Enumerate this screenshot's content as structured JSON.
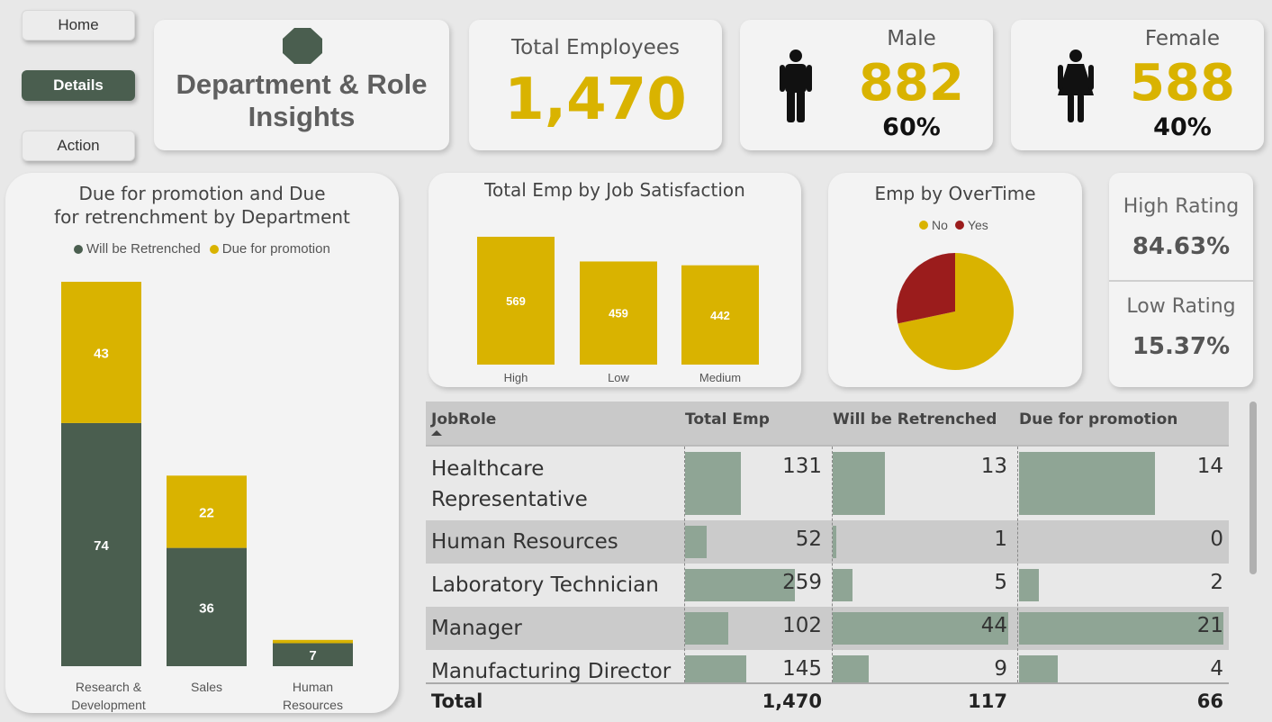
{
  "nav": {
    "home": "Home",
    "details": "Details",
    "action": "Action"
  },
  "header": {
    "title_line1": "Department & Role",
    "title_line2": "Insights",
    "logo_icon": "octagon-icon"
  },
  "kpis": {
    "total_label": "Total Employees",
    "total_value": "1,470",
    "male_label": "Male",
    "male_value": "882",
    "male_pct": "60%",
    "female_label": "Female",
    "female_value": "588",
    "female_pct": "40%"
  },
  "ratings": {
    "high_label": "High Rating",
    "high_value": "84.63%",
    "low_label": "Low Rating",
    "low_value": "15.37%"
  },
  "colors": {
    "gold": "#d9b300",
    "green": "#4a5e4f",
    "red": "#9b1c1c",
    "bar_green": "#8fa595"
  },
  "chart_data": [
    {
      "type": "bar",
      "stacked": true,
      "title": "Due for promotion and Due for retrenchment by Department",
      "legend_position": "top",
      "categories": [
        "Research & Development",
        "Sales",
        "Human Resources"
      ],
      "series": [
        {
          "name": "Will be Retrenched",
          "values": [
            74,
            36,
            7
          ]
        },
        {
          "name": "Due for promotion",
          "values": [
            43,
            22,
            1
          ]
        }
      ]
    },
    {
      "type": "bar",
      "title": "Total Emp by Job Satisfaction",
      "categories": [
        "High",
        "Low",
        "Medium"
      ],
      "values": [
        569,
        459,
        442
      ]
    },
    {
      "type": "pie",
      "title": "Emp by OverTime",
      "legend_position": "top",
      "categories": [
        "No",
        "Yes"
      ],
      "values": [
        1054,
        416
      ]
    }
  ],
  "table": {
    "headers": [
      "JobRole",
      "Total Emp",
      "Will be Retrenched",
      "Due for promotion"
    ],
    "rows": [
      {
        "role_line1": "Healthcare",
        "role_line2": "Representative",
        "total": "131",
        "retrenched": "13",
        "promotion": "14",
        "t": 131,
        "r": 13,
        "p": 14
      },
      {
        "role_line1": "Human Resources",
        "role_line2": "",
        "total": "52",
        "retrenched": "1",
        "promotion": "0",
        "t": 52,
        "r": 1,
        "p": 0
      },
      {
        "role_line1": "Laboratory Technician",
        "role_line2": "",
        "total": "259",
        "retrenched": "5",
        "promotion": "2",
        "t": 259,
        "r": 5,
        "p": 2
      },
      {
        "role_line1": "Manager",
        "role_line2": "",
        "total": "102",
        "retrenched": "44",
        "promotion": "21",
        "t": 102,
        "r": 44,
        "p": 21
      },
      {
        "role_line1": "Manufacturing Director",
        "role_line2": "",
        "total": "145",
        "retrenched": "9",
        "promotion": "4",
        "t": 145,
        "r": 9,
        "p": 4
      }
    ],
    "total_label": "Total",
    "total_emp": "1,470",
    "total_retrenched": "117",
    "total_promotion": "66"
  }
}
